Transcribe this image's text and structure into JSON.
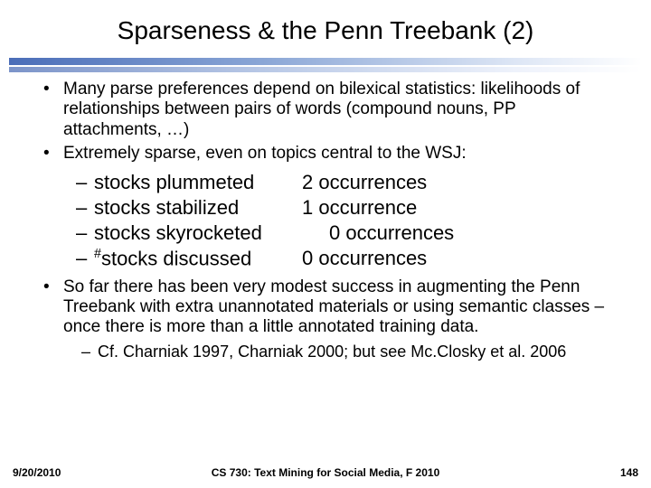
{
  "title": "Sparseness & the Penn Treebank (2)",
  "bullets": {
    "b1": "Many parse preferences depend on bilexical statistics: likelihoods of relationships between pairs of words (compound nouns, PP attachments, …)",
    "b2": "Extremely sparse, even on topics central to the WSJ:",
    "examples": {
      "e1_phrase": "stocks plummeted",
      "e1_count": "2 occurrences",
      "e2_phrase": "stocks stabilized",
      "e2_count": "1 occurrence",
      "e3_phrase": "stocks skyrocketed",
      "e3_count": "0 occurrences",
      "e4_phrase": "stocks discussed",
      "e4_count": "0 occurrences",
      "e4_sup": "#"
    },
    "b3": "So far there has been very modest success in augmenting the Penn Treebank with extra unannotated materials or using semantic classes – once there is more than a little annotated training data.",
    "ref": "Cf. Charniak 1997, Charniak 2000; but see Mc.Closky et al. 2006"
  },
  "footer": {
    "date": "9/20/2010",
    "center": "CS 730: Text Mining for Social Media, F 2010",
    "page": "148"
  },
  "colors": {
    "grad_start": "#4a6db8",
    "grad_end": "#ffffff"
  }
}
